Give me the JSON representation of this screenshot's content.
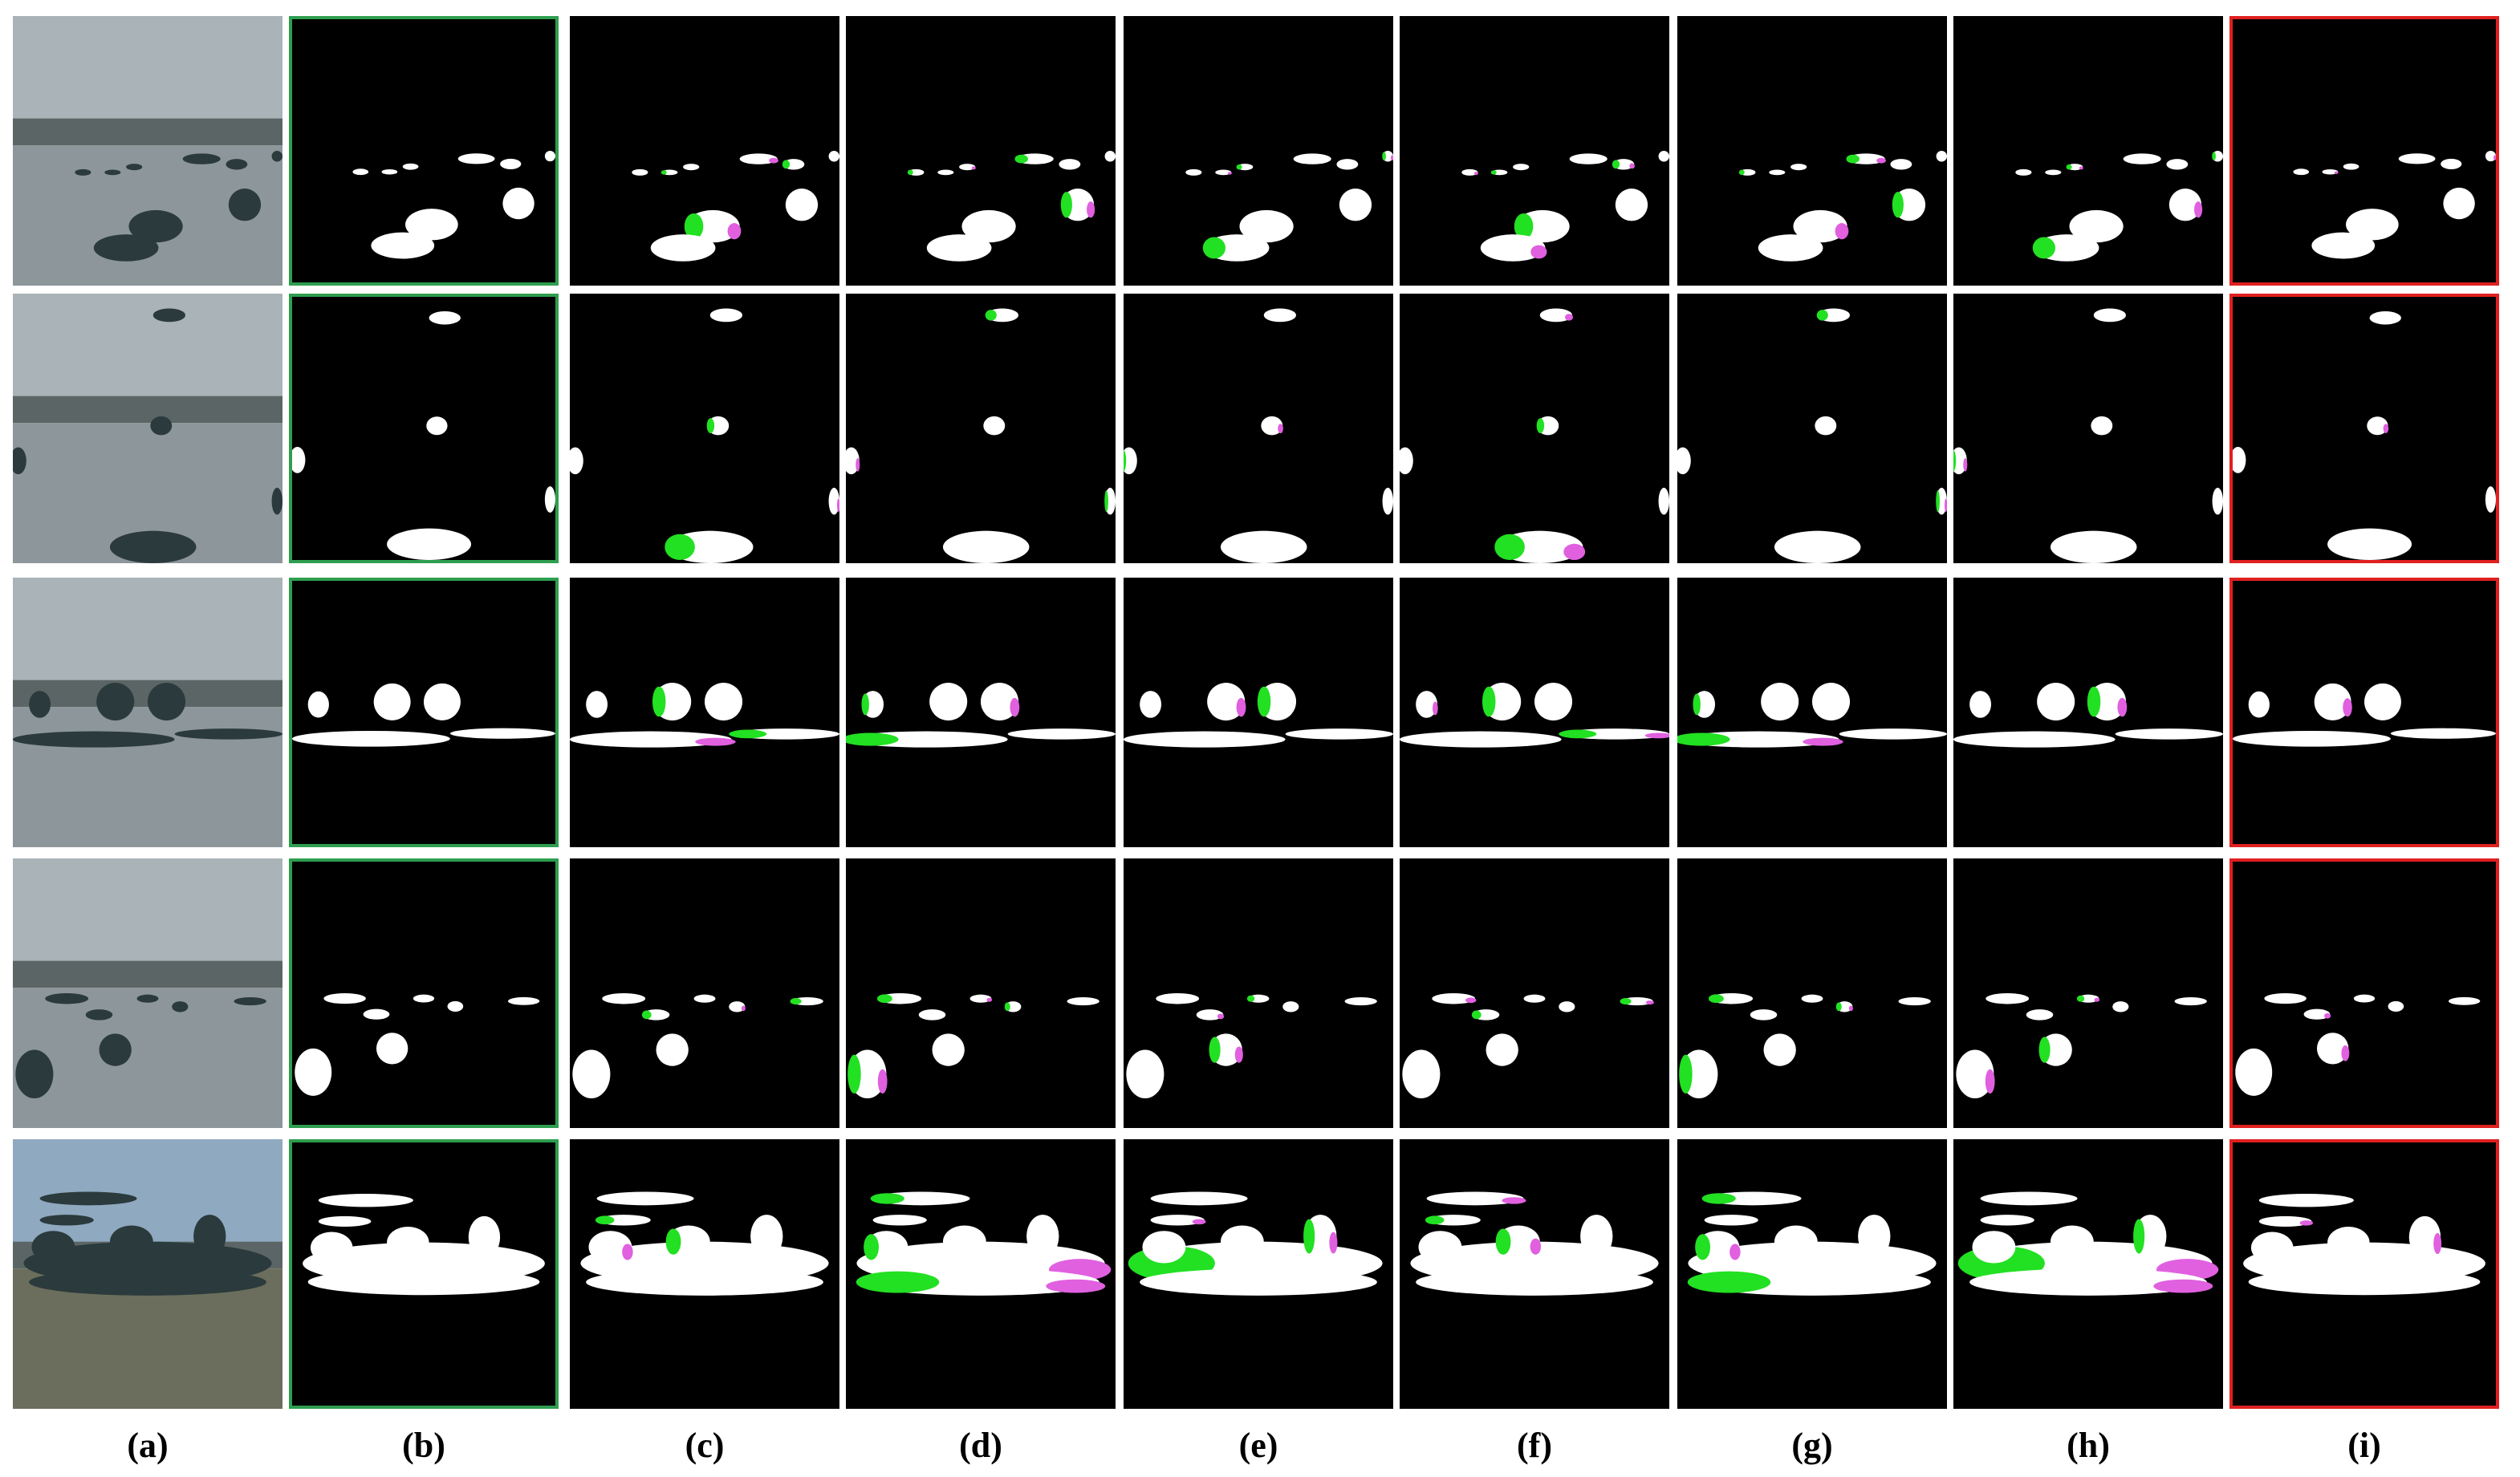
{
  "figure": {
    "labels": [
      "(a)",
      "(b)",
      "(c)",
      "(d)",
      "(e)",
      "(f)",
      "(g)",
      "(h)",
      "(i)"
    ]
  }
}
